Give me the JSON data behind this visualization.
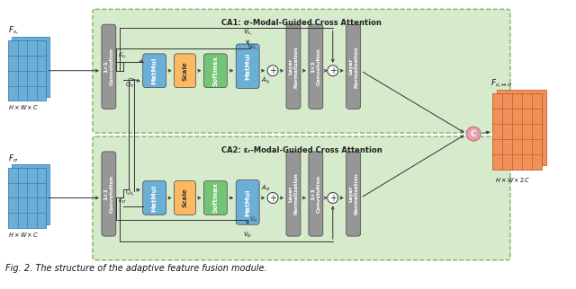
{
  "title": "Fig. 2. The structure of the adaptive feature fusion module.",
  "ca1_title": "CA1: σ-Modal-Guided Cross Attention",
  "ca2_title": "CA2: εᵣ-Modal-Guided Cross Attention",
  "colors": {
    "blue_block": "#6baed6",
    "yellow_block": "#fdb863",
    "green_block": "#74c476",
    "gray_block": "#969696",
    "input_blue": "#6baed6",
    "output_orange": "#f0905a",
    "ca_bg": "#d6eacc",
    "ca_border": "#82b366",
    "pink_circle": "#e8a0b0",
    "arrow_color": "#333333"
  },
  "figsize": [
    6.4,
    3.22
  ],
  "dpi": 100
}
